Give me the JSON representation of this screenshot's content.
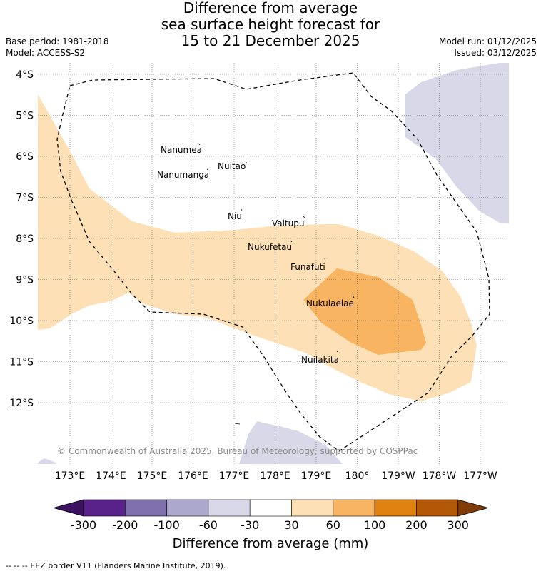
{
  "title": {
    "line1": "Difference from average",
    "line2": "sea surface height forecast for",
    "line3": "15 to 21 December 2025"
  },
  "meta": {
    "base_period": "Base period: 1981-2018",
    "model": "Model: ACCESS-S2",
    "model_run": "Model run: 01/12/2025",
    "issued": "Issued: 03/12/2025"
  },
  "map": {
    "lat_labels": [
      "4°S",
      "5°S",
      "6°S",
      "7°S",
      "8°S",
      "9°S",
      "10°S",
      "11°S",
      "12°S"
    ],
    "lon_labels": [
      "173°E",
      "174°E",
      "175°E",
      "176°E",
      "177°E",
      "178°E",
      "179°E",
      "180°",
      "179°W",
      "178°W",
      "177°W"
    ],
    "places": [
      "Nanumea",
      "Nuitao",
      "Nanumanga",
      "Niu",
      "Vaitupu",
      "Nukufetau",
      "Funafuti",
      "Nukulaelae",
      "Nuilakita"
    ],
    "copyright": "© Commonwealth of Australia 2025, Bureau of Meteorology, supported by COSPPac"
  },
  "colorbar": {
    "ticks": [
      "-300",
      "-200",
      "-100",
      "-60",
      "-30",
      "30",
      "60",
      "100",
      "200",
      "300"
    ],
    "colors": [
      "#3d1361",
      "#58228a",
      "#7e70ab",
      "#aca7cc",
      "#d8d8e9",
      "#ffffff",
      "#fde0b6",
      "#f8b461",
      "#e0820f",
      "#b35806",
      "#7f3b08"
    ],
    "title": "Difference from average (mm)"
  },
  "legend": {
    "eez": "--  --  -- EEZ border V11 (Flanders Marine Institute, 2019)."
  }
}
